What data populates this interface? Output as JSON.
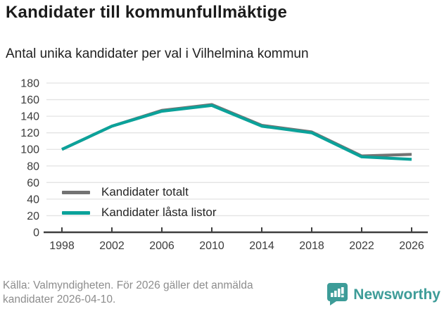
{
  "header": {
    "title": "Kandidater till kommunfullmäktige",
    "subtitle": "Antal unika kandidater per val i Vilhelmina kommun"
  },
  "chart_data": {
    "type": "line",
    "categories": [
      "1998",
      "2002",
      "2006",
      "2010",
      "2014",
      "2018",
      "2022",
      "2026"
    ],
    "series": [
      {
        "name": "Kandidater totalt",
        "color": "#737373",
        "values": [
          100,
          128,
          147,
          154,
          129,
          121,
          92,
          94
        ]
      },
      {
        "name": "Kandidater låsta listor",
        "color": "#0ba29a",
        "values": [
          100,
          128,
          146,
          153,
          128,
          120,
          91,
          88
        ]
      }
    ],
    "title": "Kandidater till kommunfullmäktige",
    "subtitle": "Antal unika kandidater per val i Vilhelmina kommun",
    "xlabel": "",
    "ylabel": "",
    "ylim": [
      0,
      180
    ],
    "ytick_step": 20,
    "grid": true,
    "legend_position": "lower-left"
  },
  "colors": {
    "grid": "#e3e3e3",
    "axis": "#3f3f3f",
    "brand_teal": "#3d9c98"
  },
  "footer": {
    "source": "Källa: Valmyndigheten. För 2026 gäller det anmälda kandidater 2026-04-10.",
    "brand": "Newsworthy"
  }
}
